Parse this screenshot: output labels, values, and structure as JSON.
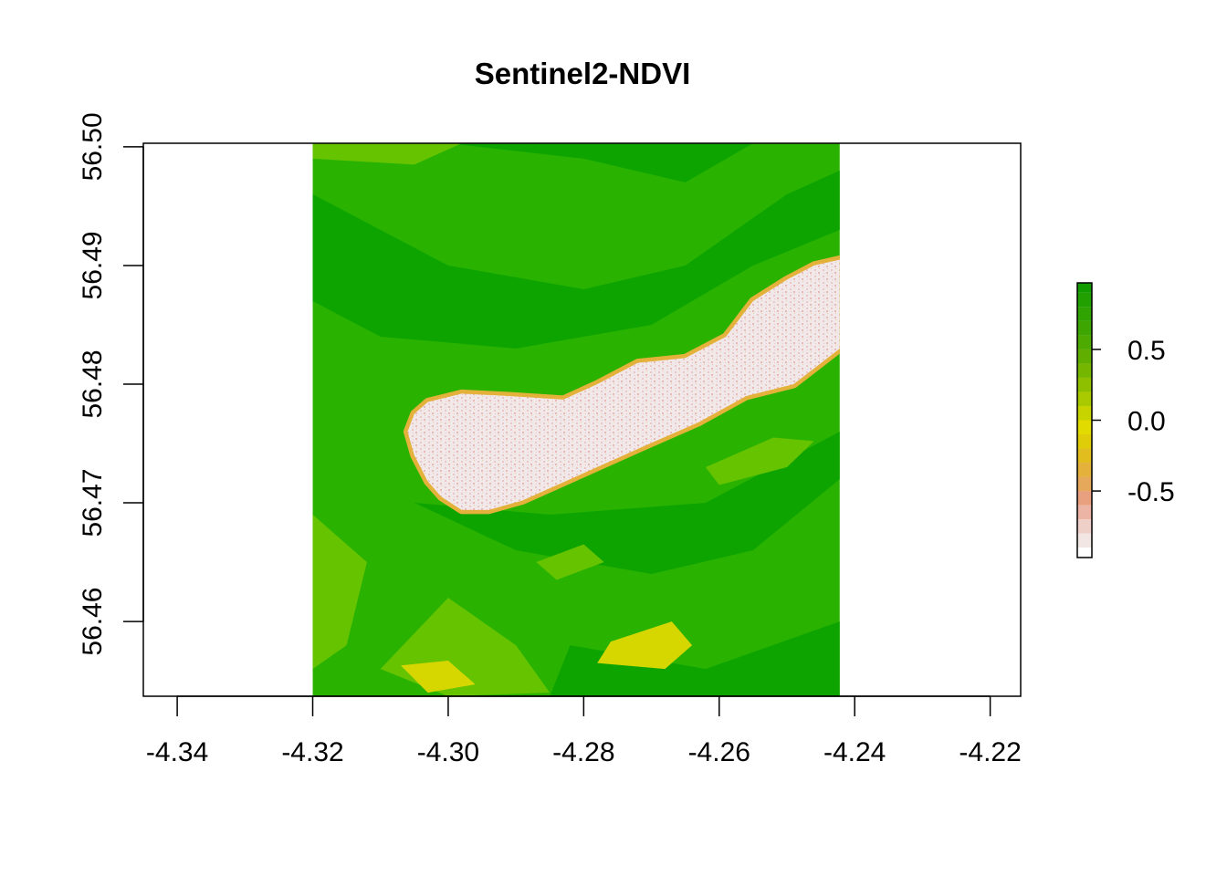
{
  "chart_data": {
    "type": "heatmap",
    "title": "Sentinel2-NDVI",
    "xlabel": "",
    "ylabel": "",
    "xlim": [
      -4.345,
      -4.2155
    ],
    "ylim": [
      56.4537,
      56.5003
    ],
    "x_ticks": [
      -4.34,
      -4.32,
      -4.3,
      -4.28,
      -4.26,
      -4.24,
      -4.22
    ],
    "x_tick_labels": [
      "-4.34",
      "-4.32",
      "-4.30",
      "-4.28",
      "-4.26",
      "-4.24",
      "-4.22"
    ],
    "y_ticks": [
      56.46,
      56.47,
      56.48,
      56.49,
      56.5
    ],
    "y_tick_labels": [
      "56.46",
      "56.47",
      "56.48",
      "56.49",
      "56.50"
    ],
    "raster_extent": {
      "xmin": -4.32,
      "xmax": -4.2422,
      "ymin": 56.4537,
      "ymax": 56.5003
    },
    "lake_outline": [
      [
        -4.305,
        56.4775
      ],
      [
        -4.303,
        56.4785
      ],
      [
        -4.298,
        56.4792
      ],
      [
        -4.291,
        56.479
      ],
      [
        -4.283,
        56.4787
      ],
      [
        -4.278,
        56.48
      ],
      [
        -4.272,
        56.4818
      ],
      [
        -4.265,
        56.4822
      ],
      [
        -4.259,
        56.484
      ],
      [
        -4.255,
        56.487
      ],
      [
        -4.25,
        56.4888
      ],
      [
        -4.246,
        56.49
      ],
      [
        -4.2422,
        56.4905
      ],
      [
        -4.2422,
        56.483
      ],
      [
        -4.249,
        56.48
      ],
      [
        -4.256,
        56.479
      ],
      [
        -4.263,
        56.4768
      ],
      [
        -4.271,
        56.4748
      ],
      [
        -4.28,
        56.4725
      ],
      [
        -4.289,
        56.4702
      ],
      [
        -4.294,
        56.4694
      ],
      [
        -4.298,
        56.4694
      ],
      [
        -4.301,
        56.4705
      ],
      [
        -4.303,
        56.4718
      ],
      [
        -4.305,
        56.474
      ],
      [
        -4.306,
        56.476
      ]
    ],
    "legend": {
      "position": "right",
      "breaks": [
        -1.0,
        -0.9,
        -0.8,
        -0.7,
        -0.6,
        -0.5,
        -0.4,
        -0.3,
        -0.2,
        -0.1,
        0.0,
        0.1,
        0.2,
        0.3,
        0.4,
        0.5,
        0.6,
        0.7,
        0.8,
        0.9,
        1.0
      ],
      "colors": [
        "#ffffff",
        "#f2e6e4",
        "#efd0c8",
        "#ecb4a4",
        "#e8a07e",
        "#e6a85a",
        "#e4b13a",
        "#e2bd1e",
        "#e0cd0a",
        "#e2db00",
        "#c8d400",
        "#a9ca00",
        "#8fc000",
        "#75b600",
        "#5fae00",
        "#4caa00",
        "#3da600",
        "#2fa300",
        "#21a000",
        "#139c00"
      ],
      "tick_values": [
        0.5,
        0.0,
        -0.5
      ],
      "tick_labels": [
        "0.5",
        "0.0",
        "-0.5"
      ],
      "display_range": [
        -0.97,
        0.97
      ]
    },
    "colors": {
      "vegetation_dark": "#0da400",
      "vegetation_mid": "#29b300",
      "vegetation_light": "#66c300",
      "bare": "#d6d600",
      "water": "#f1e8e9",
      "water_speckle": "#ebc6c6",
      "shore": "#e4b13a"
    },
    "grid": false
  }
}
